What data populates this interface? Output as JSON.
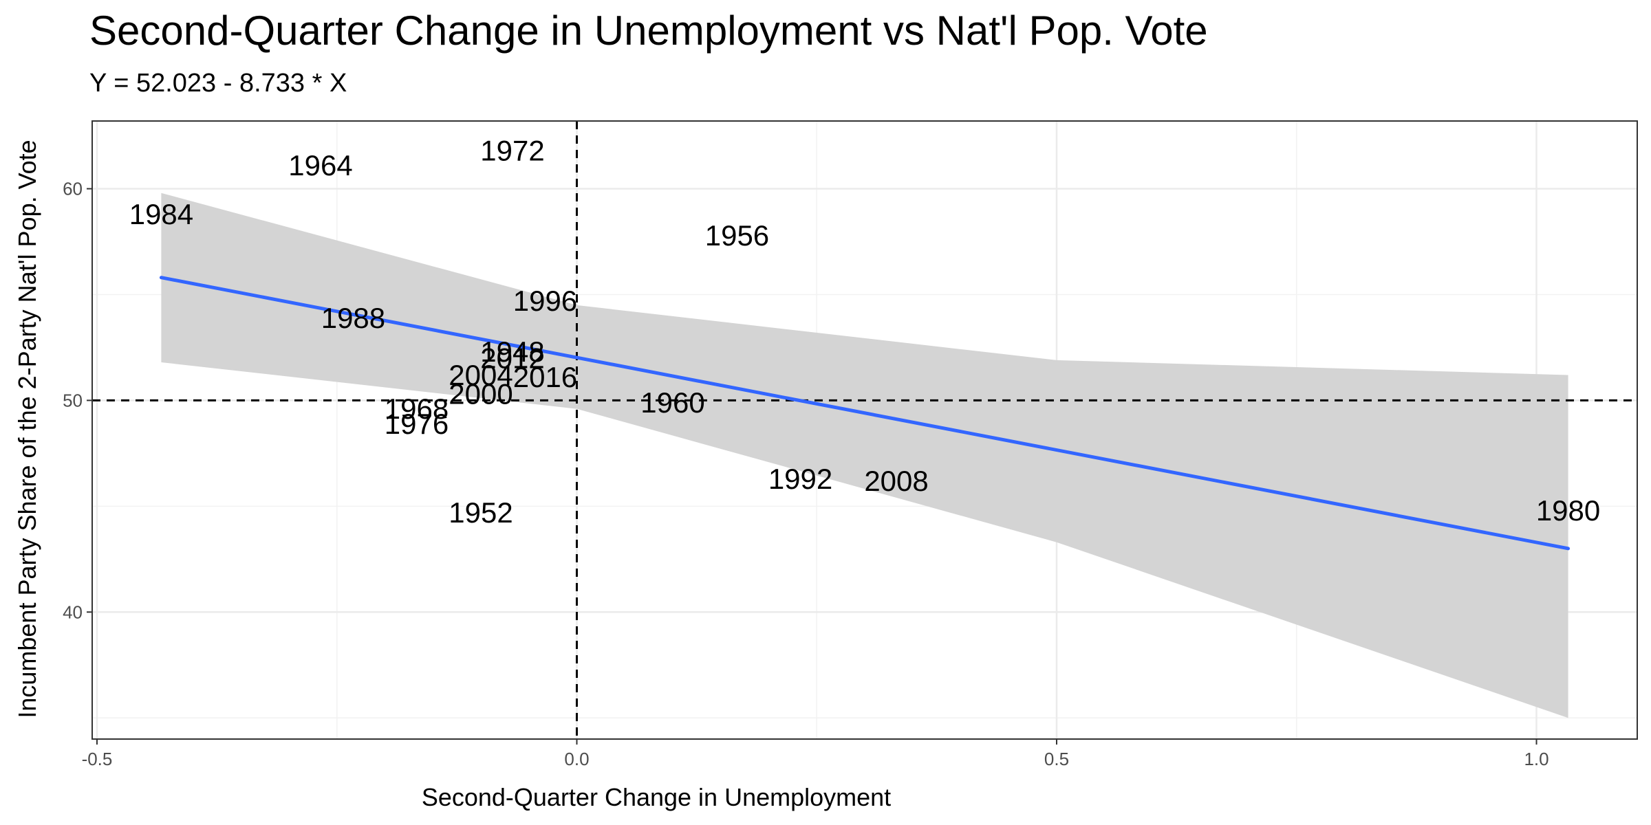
{
  "chart_data": {
    "type": "scatter",
    "title": "Second-Quarter Change in Unemployment vs Nat'l Pop. Vote",
    "subtitle": "Y = 52.023 - 8.733 * X",
    "xlabel": "Second-Quarter Change in Unemployment",
    "ylabel": "Incumbent Party Share of the 2-Party Nat'l Pop. Vote",
    "xlim": [
      -0.505,
      1.105
    ],
    "ylim": [
      34.0,
      63.2
    ],
    "xticks": [
      "-0.5",
      "0.0",
      "0.5",
      "1.0"
    ],
    "xtick_values": [
      -0.5,
      0.0,
      0.5,
      1.0
    ],
    "yticks": [
      "40",
      "50",
      "60"
    ],
    "ytick_values": [
      40,
      50,
      60
    ],
    "x_minor_grid": [
      -0.25,
      0.25,
      0.75
    ],
    "y_minor_grid": [
      35,
      45,
      55
    ],
    "grid": true,
    "reference_lines": {
      "x": 0,
      "y": 50,
      "style": "dashed"
    },
    "regression": {
      "intercept": 52.023,
      "slope": -8.733,
      "x_range": [
        -0.433,
        1.033
      ],
      "color": "#3366FF",
      "band_color": "#d4d4d4",
      "band_lower": [
        [
          -0.433,
          51.8
        ],
        [
          0.0,
          49.6
        ],
        [
          0.5,
          43.3
        ],
        [
          1.033,
          35.0
        ]
      ],
      "band_upper": [
        [
          -0.433,
          59.8
        ],
        [
          0.0,
          54.5
        ],
        [
          0.5,
          51.9
        ],
        [
          1.033,
          51.2
        ]
      ]
    },
    "points": [
      {
        "label": "1984",
        "x": -0.433,
        "y": 58.8
      },
      {
        "label": "1964",
        "x": -0.267,
        "y": 61.1
      },
      {
        "label": "1972",
        "x": -0.067,
        "y": 61.8
      },
      {
        "label": "1956",
        "x": 0.167,
        "y": 57.8
      },
      {
        "label": "1996",
        "x": -0.033,
        "y": 54.7
      },
      {
        "label": "1988",
        "x": -0.233,
        "y": 53.9
      },
      {
        "label": "1948",
        "x": -0.067,
        "y": 52.3
      },
      {
        "label": "2012",
        "x": -0.067,
        "y": 52.0
      },
      {
        "label": "2004",
        "x": -0.1,
        "y": 51.2
      },
      {
        "label": "2016",
        "x": -0.033,
        "y": 51.1
      },
      {
        "label": "2000",
        "x": -0.1,
        "y": 50.3
      },
      {
        "label": "1960",
        "x": 0.1,
        "y": 49.9
      },
      {
        "label": "1968",
        "x": -0.167,
        "y": 49.6
      },
      {
        "label": "1976",
        "x": -0.167,
        "y": 48.9
      },
      {
        "label": "1992",
        "x": 0.233,
        "y": 46.3
      },
      {
        "label": "2008",
        "x": 0.333,
        "y": 46.2
      },
      {
        "label": "1952",
        "x": -0.1,
        "y": 44.7
      },
      {
        "label": "1980",
        "x": 1.033,
        "y": 44.8
      }
    ]
  }
}
